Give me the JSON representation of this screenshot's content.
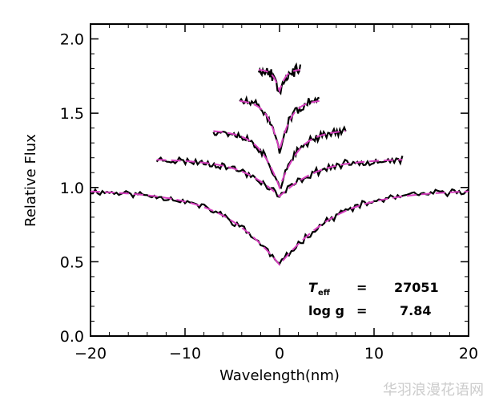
{
  "chart_data": {
    "type": "line",
    "title": "",
    "xlabel": "Wavelength(nm)",
    "ylabel": "Relative Flux",
    "xlim": [
      -20,
      20
    ],
    "ylim": [
      0.0,
      2.1
    ],
    "x_ticks": [
      -20,
      -10,
      0,
      10,
      20
    ],
    "x_tick_labels": [
      "−20",
      "−10",
      "0",
      "10",
      "20"
    ],
    "y_ticks": [
      0.0,
      0.5,
      1.0,
      1.5,
      2.0
    ],
    "y_tick_labels": [
      "0.0",
      "0.5",
      "1.0",
      "1.5",
      "2.0"
    ],
    "grid": false,
    "colors": {
      "observed": "#000000",
      "model": "#d63fbf"
    },
    "series": [
      {
        "half_width": 20,
        "continuum": 1.0,
        "depth": 0.52,
        "noise": 0.018,
        "points": 160,
        "seed": 11
      },
      {
        "half_width": 13,
        "continuum": 1.2,
        "depth": 0.26,
        "noise": 0.02,
        "points": 120,
        "seed": 23
      },
      {
        "half_width": 7,
        "continuum": 1.4,
        "depth": 0.4,
        "noise": 0.022,
        "points": 90,
        "seed": 37
      },
      {
        "half_width": 4.2,
        "continuum": 1.6,
        "depth": 0.35,
        "noise": 0.025,
        "points": 60,
        "seed": 51
      },
      {
        "half_width": 2.2,
        "continuum": 1.8,
        "depth": 0.15,
        "noise": 0.03,
        "points": 40,
        "seed": 67
      }
    ],
    "annotations": {
      "teff_label": "T",
      "teff_sub": "eff",
      "teff_eq": "=",
      "teff_value": "27051",
      "logg_label": "log g",
      "logg_eq": "=",
      "logg_value": "7.84"
    }
  },
  "watermark": "华羽浪漫花语网"
}
